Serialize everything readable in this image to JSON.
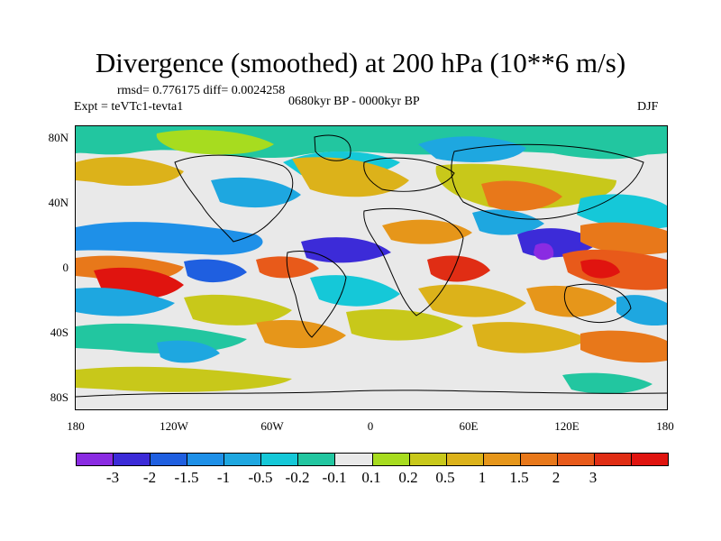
{
  "title": "Divergence (smoothed) at 200 hPa (10**6 m/s)",
  "stats": "rmsd= 0.776175 diff= 0.0024258",
  "experiment": "Expt = teVTc1-tevta1",
  "period": "0680kyr BP - 0000kyr BP",
  "season": "DJF",
  "lat_labels": [
    "80N",
    "40N",
    "0",
    "40S",
    "80S"
  ],
  "lon_labels": [
    "180",
    "120W",
    "60W",
    "0",
    "60E",
    "120E",
    "180"
  ],
  "colorbar": {
    "colors": [
      "#8a2be2",
      "#3c2bd8",
      "#1f5fe0",
      "#1e90e8",
      "#1ea7e0",
      "#15c8d8",
      "#22c6a0",
      "#e9e9e9",
      "#a7dc1f",
      "#c8c81a",
      "#dcb21a",
      "#e6961a",
      "#e8781a",
      "#e85a1a",
      "#e02d14",
      "#e0140f"
    ],
    "labels": [
      "-3",
      "-2",
      "-1.5",
      "-1",
      "-0.5",
      "-0.2",
      "-0.1",
      "0.1",
      "0.2",
      "0.5",
      "1",
      "1.5",
      "2",
      "3"
    ]
  }
}
